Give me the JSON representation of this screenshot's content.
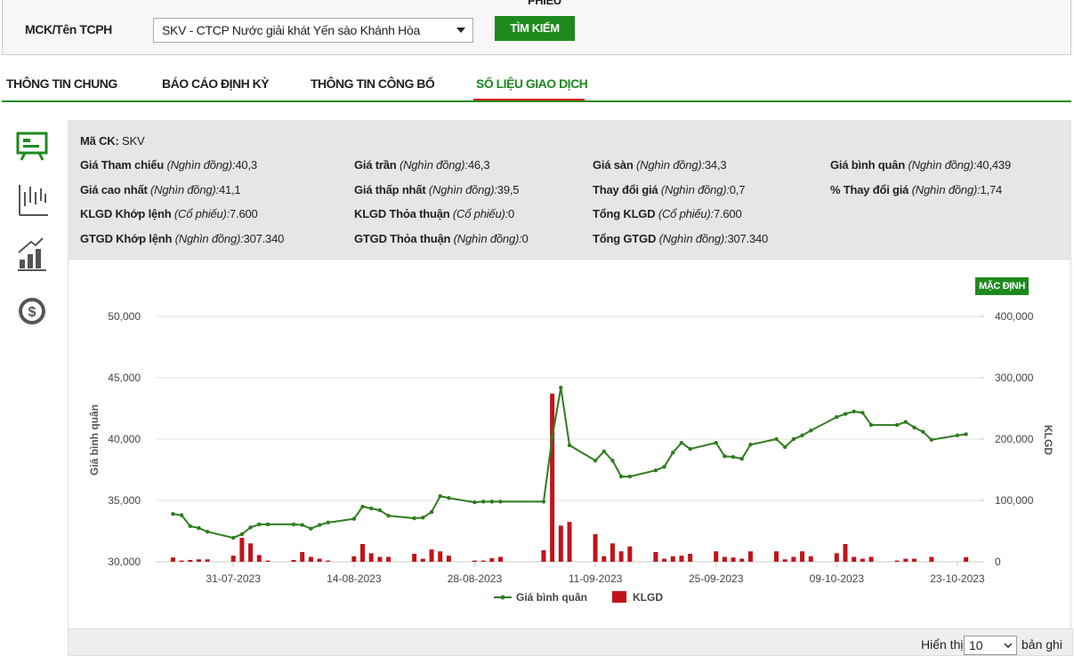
{
  "search": {
    "heading": "PHIẾU",
    "label": "MCK/Tên TCPH",
    "selected": "SKV - CTCP Nước giải khát Yến sào Khánh Hòa",
    "button": "TÌM KIẾM"
  },
  "tabs": {
    "items": [
      "THÔNG TIN CHUNG",
      "BÁO CÁO ĐỊNH KỲ",
      "THÔNG TIN CÔNG BỐ",
      "SỐ LIỆU GIAO DỊCH"
    ],
    "active": 3
  },
  "info": {
    "code": {
      "label": "Mã CK:",
      "value": "SKV"
    },
    "rows": [
      [
        {
          "label": "Giá Tham chiếu",
          "unit": "(Nghìn đồng):",
          "value": "40,3"
        },
        {
          "label": "Giá trần",
          "unit": "(Nghìn đồng):",
          "value": "46,3"
        },
        {
          "label": "Giá sàn",
          "unit": "(Nghìn đồng):",
          "value": "34,3"
        },
        {
          "label": "Giá bình quân",
          "unit": "(Nghìn đồng):",
          "value": "40,439"
        }
      ],
      [
        {
          "label": "Giá cao nhất",
          "unit": "(Nghìn đồng):",
          "value": "41,1"
        },
        {
          "label": "Giá thấp nhất",
          "unit": "(Nghìn đồng):",
          "value": "39,5"
        },
        {
          "label": "Thay đổi giá",
          "unit": "(Nghìn đồng):",
          "value": "0,7"
        },
        {
          "label": "% Thay đổi giá",
          "unit": "(Nghìn đồng):",
          "value": "1,74"
        }
      ],
      [
        {
          "label": "KLGD Khớp lệnh",
          "unit": "(Cổ phiếu):",
          "value": "7.600"
        },
        {
          "label": "KLGD Thỏa thuận",
          "unit": "(Cổ phiếu):",
          "value": "0"
        },
        {
          "label": "Tổng KLGD",
          "unit": "(Cổ phiếu):",
          "value": "7.600"
        }
      ],
      [
        {
          "label": "GTGD Khớp lệnh",
          "unit": "(Nghìn đồng):",
          "value": "307.340"
        },
        {
          "label": "GTGD Thỏa thuận",
          "unit": "(Nghìn đồng):",
          "value": "0"
        },
        {
          "label": "Tổng GTGD",
          "unit": "(Nghìn đồng):",
          "value": "307.340"
        }
      ]
    ]
  },
  "chart_button": "MẶC ĐỊNH",
  "chart_data": {
    "type": "combo",
    "ylabel": "Giá bình quân",
    "y2label": "KLGD",
    "x": [
      "24-07-2023",
      "25-07-2023",
      "26-07-2023",
      "27-07-2023",
      "28-07-2023",
      "31-07-2023",
      "01-08-2023",
      "02-08-2023",
      "03-08-2023",
      "04-08-2023",
      "07-08-2023",
      "08-08-2023",
      "09-08-2023",
      "10-08-2023",
      "11-08-2023",
      "14-08-2023",
      "15-08-2023",
      "16-08-2023",
      "17-08-2023",
      "18-08-2023",
      "21-08-2023",
      "22-08-2023",
      "23-08-2023",
      "24-08-2023",
      "25-08-2023",
      "28-08-2023",
      "29-08-2023",
      "30-08-2023",
      "31-08-2023",
      "05-09-2023",
      "06-09-2023",
      "07-09-2023",
      "08-09-2023",
      "11-09-2023",
      "12-09-2023",
      "13-09-2023",
      "14-09-2023",
      "15-09-2023",
      "18-09-2023",
      "19-09-2023",
      "20-09-2023",
      "21-09-2023",
      "22-09-2023",
      "25-09-2023",
      "26-09-2023",
      "27-09-2023",
      "28-09-2023",
      "29-09-2023",
      "02-10-2023",
      "03-10-2023",
      "04-10-2023",
      "05-10-2023",
      "06-10-2023",
      "09-10-2023",
      "10-10-2023",
      "11-10-2023",
      "12-10-2023",
      "13-10-2023",
      "16-10-2023",
      "17-10-2023",
      "18-10-2023",
      "19-10-2023",
      "20-10-2023",
      "23-10-2023",
      "24-10-2023"
    ],
    "xlim": [
      "22-07-2023",
      "26-10-2023"
    ],
    "xticks": [
      "31-07-2023",
      "14-08-2023",
      "28-08-2023",
      "11-09-2023",
      "25-09-2023",
      "09-10-2023",
      "23-10-2023"
    ],
    "ylim": [
      30000,
      50000
    ],
    "yticks": [
      {
        "value": 30000,
        "label": "30,000"
      },
      {
        "value": 35000,
        "label": "35,000"
      },
      {
        "value": 40000,
        "label": "40,000"
      },
      {
        "value": 45000,
        "label": "45,000"
      },
      {
        "value": 50000,
        "label": "50,000"
      }
    ],
    "y2lim": [
      0,
      400000
    ],
    "y2ticks": [
      0,
      {
        "value": 100000,
        "label": "100,000"
      },
      {
        "value": 200000,
        "label": "200,000"
      },
      {
        "value": 300000,
        "label": "300,000"
      },
      {
        "value": 400000,
        "label": "400,000"
      }
    ],
    "grid": true,
    "series": [
      {
        "name": "Giá bình quân",
        "type": "line",
        "color": "#2e7d1e",
        "values": [
          33900,
          33800,
          32900,
          32750,
          32450,
          31950,
          32250,
          32800,
          33050,
          33050,
          33050,
          33000,
          32700,
          33000,
          33200,
          33500,
          34500,
          34350,
          34200,
          33750,
          33550,
          33600,
          34050,
          35350,
          35200,
          34850,
          34900,
          34900,
          34900,
          34900,
          40150,
          44200,
          39500,
          38250,
          39000,
          38250,
          36950,
          36950,
          37450,
          37750,
          38900,
          39700,
          39200,
          39700,
          38600,
          38550,
          38400,
          39550,
          40000,
          39350,
          40000,
          40300,
          40700,
          41800,
          42050,
          42250,
          42150,
          41150,
          41150,
          41400,
          40950,
          40600,
          39950,
          40300,
          40400
        ]
      },
      {
        "name": "KLGD",
        "type": "bar",
        "axis": "y2",
        "color": "#c0141a",
        "values": [
          7000,
          2000,
          3000,
          4000,
          4000,
          10000,
          39000,
          30000,
          11000,
          2000,
          3000,
          16000,
          8000,
          5000,
          2000,
          9000,
          29000,
          14000,
          8000,
          8000,
          13000,
          5000,
          20000,
          17000,
          10000,
          2000,
          2000,
          6000,
          8000,
          19000,
          274000,
          59000,
          65000,
          45000,
          9000,
          30000,
          17000,
          25000,
          16000,
          5000,
          9000,
          10000,
          13000,
          17000,
          8000,
          7000,
          5000,
          17000,
          17000,
          4000,
          8000,
          17000,
          9000,
          14000,
          29000,
          8000,
          5000,
          8000,
          2000,
          5000,
          5000,
          0,
          8000,
          0,
          7600
        ]
      }
    ]
  },
  "footer": {
    "show": "Hiển thị",
    "page_size": "10",
    "records": "bản ghi"
  }
}
